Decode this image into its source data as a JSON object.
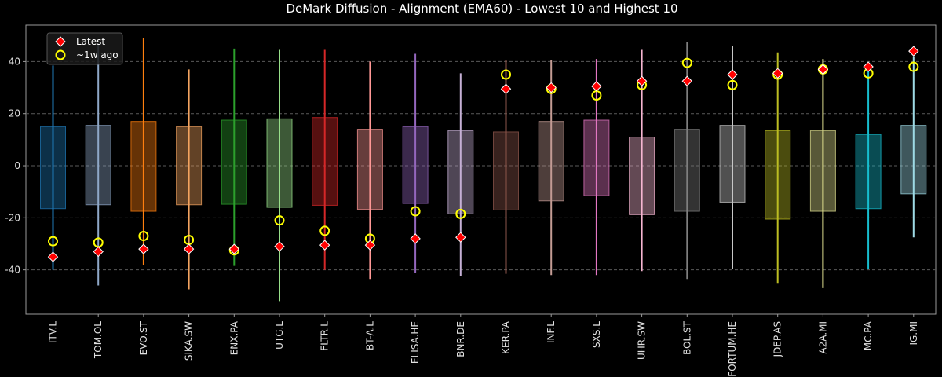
{
  "chart_data": {
    "type": "box",
    "title": "DeMark Diffusion - Alignment (EMA60) - Lowest 10 and Highest 10",
    "xlabel": "",
    "ylabel": "",
    "ylim": [
      -57,
      54
    ],
    "yticks": [
      -40,
      -20,
      0,
      20,
      40
    ],
    "grid": "horizontal dashed",
    "legend_position": "top-left",
    "categories": [
      "ITV.L",
      "TOM.OL",
      "EVO.ST",
      "SIKA.SW",
      "ENX.PA",
      "UTG.L",
      "FLTR.L",
      "BT-A.L",
      "ELISA.HE",
      "BNR.DE",
      "KER.PA",
      "INF.L",
      "SXS.L",
      "UHR.SW",
      "BOL.ST",
      "FORTUM.HE",
      "JDEP.AS",
      "A2A.MI",
      "MC.PA",
      "IG.MI"
    ],
    "colors": [
      "#1f77b4",
      "#8fa8c8",
      "#ff7f0e",
      "#f4a460",
      "#2ca02c",
      "#98df8a",
      "#d62728",
      "#ff9896",
      "#9467bd",
      "#c5b0d5",
      "#8c564b",
      "#c49c94",
      "#e377c2",
      "#f7b6d2",
      "#7f7f7f",
      "#c7c7c7",
      "#bcbd22",
      "#dbdb8d",
      "#17becf",
      "#9edae5"
    ],
    "whisker_low": [
      -40,
      -46,
      -38,
      -47.5,
      -38.5,
      -52,
      -40,
      -43.5,
      -41,
      -42.5,
      -41.5,
      -42,
      -42,
      -40.5,
      -43.5,
      -39.5,
      -45,
      -47,
      -39.5,
      -27.5
    ],
    "q1": [
      -16.5,
      -15,
      -17.5,
      -15,
      -14.8,
      -16,
      -15.2,
      -16.8,
      -14.5,
      -18.5,
      -17,
      -13.5,
      -11.5,
      -18.8,
      -17.5,
      -14,
      -20.5,
      -17.5,
      -16.5,
      -10.8
    ],
    "q3": [
      15,
      15.5,
      17,
      15,
      17.5,
      18,
      18.5,
      14,
      15,
      13.5,
      13,
      17,
      17.5,
      11,
      14,
      15.5,
      13.5,
      13.5,
      12,
      15.5
    ],
    "whisker_high": [
      38.5,
      47,
      49,
      37,
      45,
      44.5,
      44.5,
      40,
      43,
      35.5,
      40.5,
      40.5,
      41,
      44.5,
      47.5,
      46,
      43.5,
      41,
      37,
      42
    ],
    "series": [
      {
        "name": "Latest",
        "marker": "diamond",
        "color": "#ff0000",
        "values": [
          -35,
          -33,
          -32,
          -32,
          -32,
          -31,
          -30.5,
          -30.5,
          -28,
          -27.5,
          29.5,
          30,
          30.5,
          32.5,
          32.5,
          35,
          35.5,
          37,
          38,
          44
        ]
      },
      {
        "name": "~1w ago",
        "marker": "circle",
        "color": "#ffff00",
        "values": [
          -29,
          -29.5,
          -27,
          -28.5,
          -32.5,
          -21,
          -25,
          -28,
          -17.5,
          -18.5,
          35,
          29.5,
          27,
          31,
          39.5,
          31,
          35,
          37,
          35.5,
          38
        ]
      }
    ]
  }
}
